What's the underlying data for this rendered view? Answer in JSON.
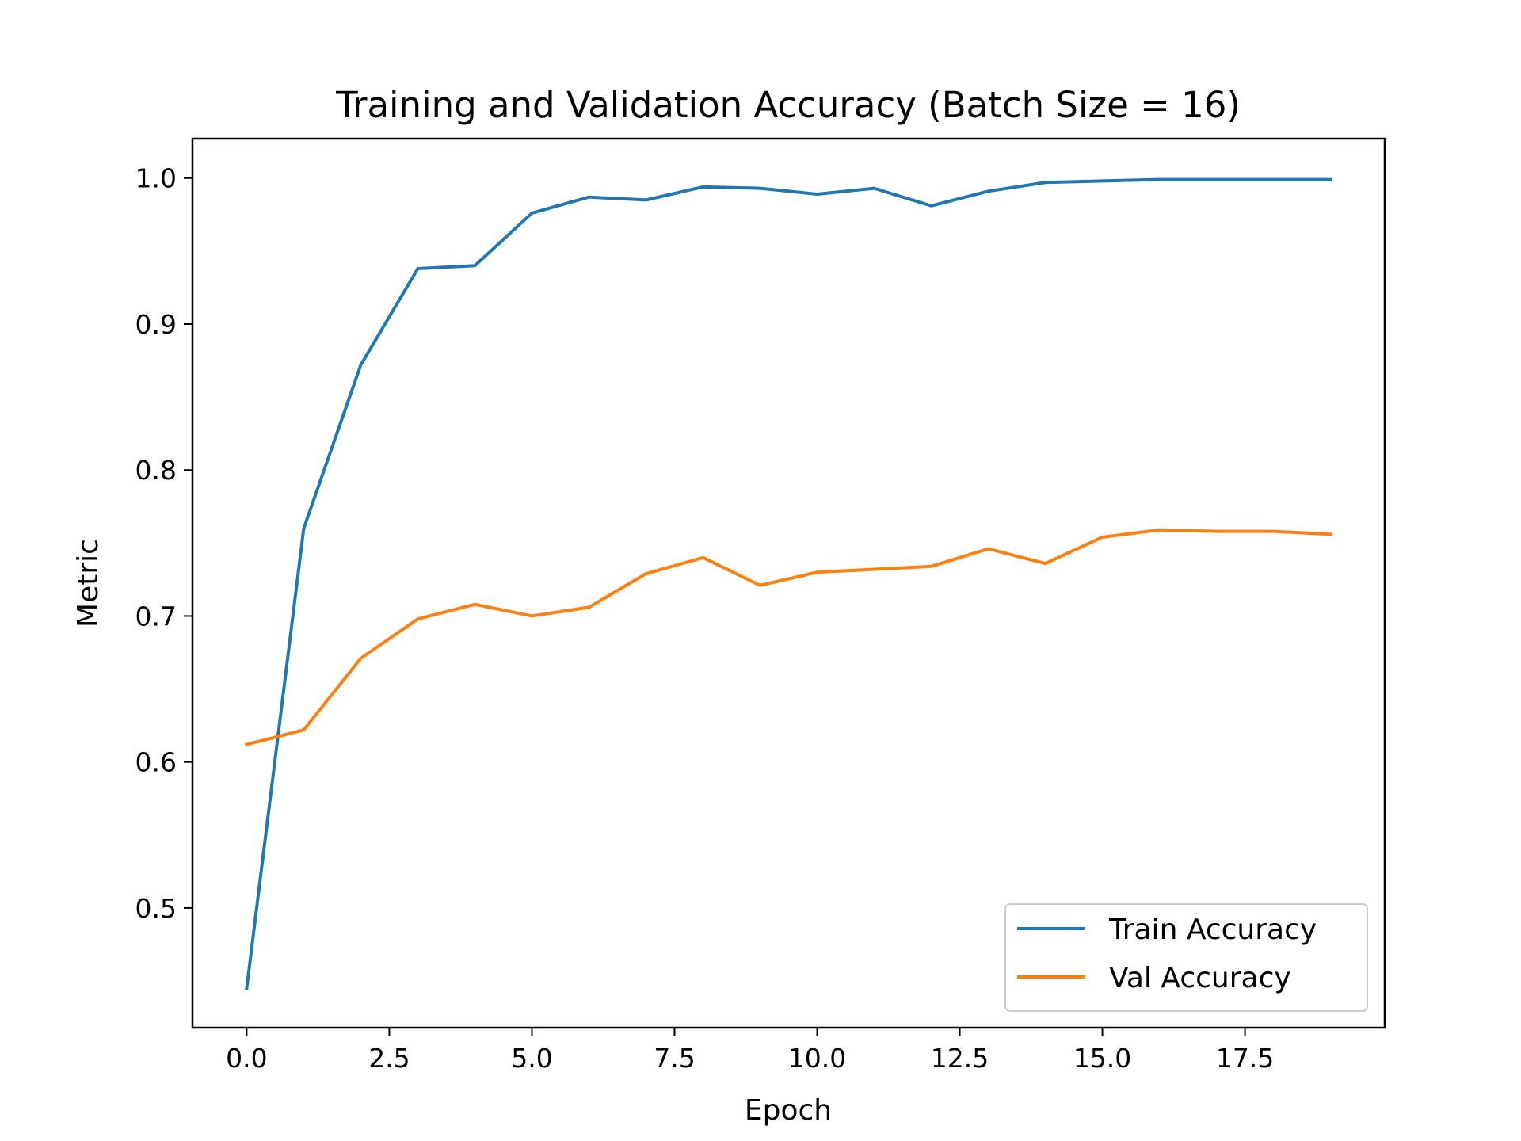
{
  "chart_data": {
    "type": "line",
    "title": "Training and Validation Accuracy (Batch Size = 16)",
    "xlabel": "Epoch",
    "ylabel": "Metric",
    "xlim": [
      -0.95,
      19.95
    ],
    "ylim": [
      0.418,
      1.027
    ],
    "xticks": [
      0.0,
      2.5,
      5.0,
      7.5,
      10.0,
      12.5,
      15.0,
      17.5
    ],
    "xtick_labels": [
      "0.0",
      "2.5",
      "5.0",
      "7.5",
      "10.0",
      "12.5",
      "15.0",
      "17.5"
    ],
    "yticks": [
      0.5,
      0.6,
      0.7,
      0.8,
      0.9,
      1.0
    ],
    "ytick_labels": [
      "0.5",
      "0.6",
      "0.7",
      "0.8",
      "0.9",
      "1.0"
    ],
    "grid": false,
    "legend_position": "lower-right",
    "x": [
      0,
      1,
      2,
      3,
      4,
      5,
      6,
      7,
      8,
      9,
      10,
      11,
      12,
      13,
      14,
      15,
      16,
      17,
      18,
      19
    ],
    "series": [
      {
        "name": "Train Accuracy",
        "color": "#1f77b4",
        "values": [
          0.445,
          0.76,
          0.872,
          0.938,
          0.94,
          0.976,
          0.987,
          0.985,
          0.994,
          0.993,
          0.989,
          0.993,
          0.981,
          0.991,
          0.997,
          0.998,
          0.999,
          0.999,
          0.999,
          0.999
        ]
      },
      {
        "name": "Val Accuracy",
        "color": "#ff7f0e",
        "values": [
          0.612,
          0.622,
          0.671,
          0.698,
          0.708,
          0.7,
          0.706,
          0.729,
          0.74,
          0.721,
          0.73,
          0.732,
          0.734,
          0.746,
          0.736,
          0.754,
          0.759,
          0.758,
          0.758,
          0.756
        ]
      }
    ]
  }
}
